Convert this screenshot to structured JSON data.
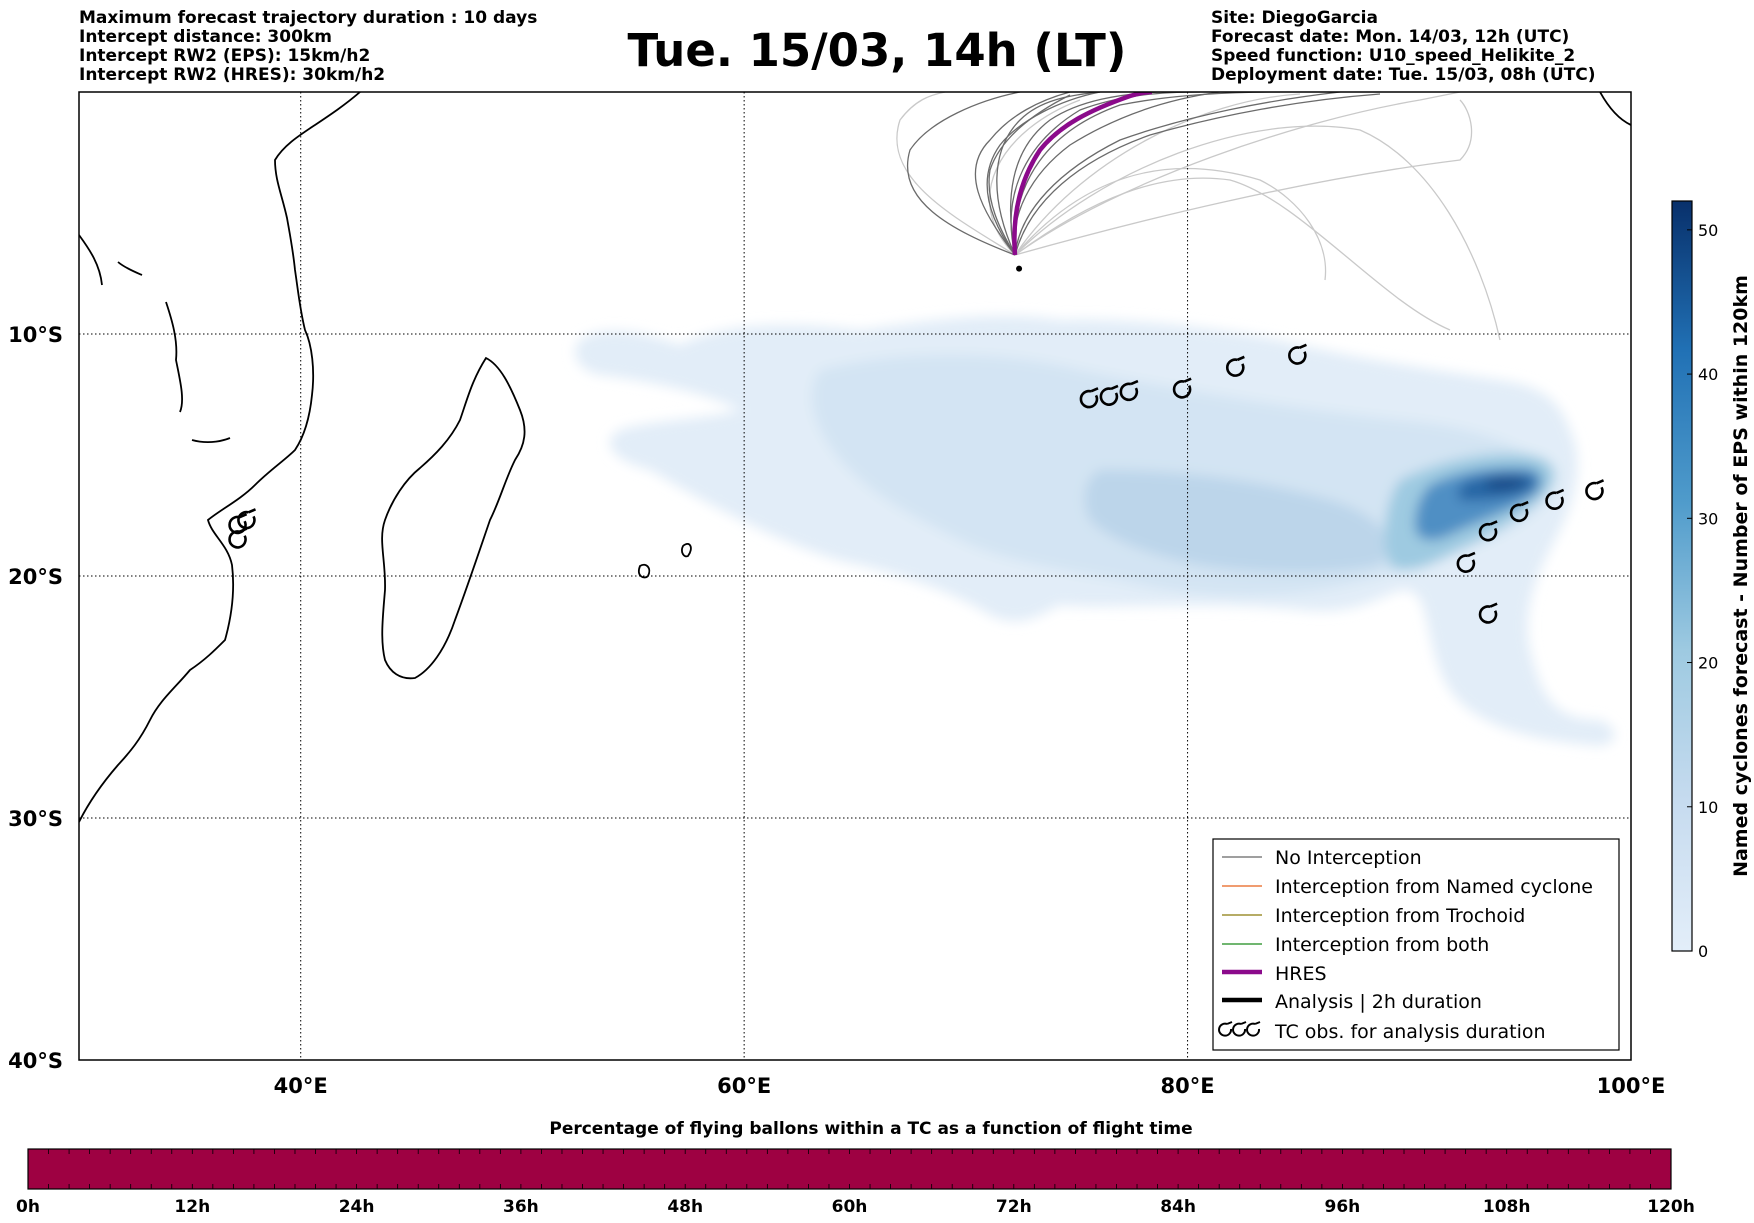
{
  "header": {
    "left_lines": [
      "Maximum forecast trajectory duration : 10 days",
      "Intercept distance: 300km",
      "Intercept RW2 (EPS):  15km/h2",
      "Intercept RW2 (HRES): 30km/h2"
    ],
    "title": "Tue. 15/03, 14h (LT)",
    "right_lines": [
      "Site: DiegoGarcia",
      "Forecast date: Mon. 14/03, 12h (UTC)",
      "Speed function: U10_speed_Helikite_2",
      "Deployment date: Tue. 15/03, 08h (UTC)"
    ]
  },
  "map": {
    "lon_range": [
      30,
      100
    ],
    "lat_range": [
      -40,
      0
    ],
    "lon_ticks": [
      {
        "value": 40,
        "label": "40°E"
      },
      {
        "value": 60,
        "label": "60°E"
      },
      {
        "value": 80,
        "label": "80°E"
      },
      {
        "value": 100,
        "label": "100°E"
      }
    ],
    "lat_ticks": [
      {
        "value": -10,
        "label": "10°S"
      },
      {
        "value": -20,
        "label": "20°S"
      },
      {
        "value": -30,
        "label": "30°S"
      },
      {
        "value": -40,
        "label": "40°S"
      }
    ],
    "gridlines": true,
    "deployment_site": {
      "lon": 72.4,
      "lat": -7.3
    },
    "tc_obs": [
      {
        "lon": 37.2,
        "lat": -17.9
      },
      {
        "lon": 37.6,
        "lat": -17.7
      },
      {
        "lon": 37.2,
        "lat": -18.5
      },
      {
        "lon": 75.6,
        "lat": -12.7
      },
      {
        "lon": 76.5,
        "lat": -12.6
      },
      {
        "lon": 77.4,
        "lat": -12.4
      },
      {
        "lon": 79.8,
        "lat": -12.3
      },
      {
        "lon": 82.2,
        "lat": -11.4
      },
      {
        "lon": 85.0,
        "lat": -10.9
      },
      {
        "lon": 98.4,
        "lat": -16.5
      },
      {
        "lon": 96.6,
        "lat": -16.9
      },
      {
        "lon": 95.0,
        "lat": -17.4
      },
      {
        "lon": 93.6,
        "lat": -18.2
      },
      {
        "lon": 92.6,
        "lat": -19.5
      },
      {
        "lon": 93.6,
        "lat": -21.6
      }
    ],
    "colors": {
      "no_interception": "#666666",
      "named_cyclone": "#e8611a",
      "trochoid": "#8a7a0a",
      "both": "#1a8a1a",
      "hres": "#8b0a8b",
      "analysis": "#000000"
    }
  },
  "legend": {
    "items": [
      {
        "label": "No Interception",
        "icon": "thin-grey-line"
      },
      {
        "label": "Interception from Named cyclone",
        "icon": "thin-orange-line"
      },
      {
        "label": "Interception from Trochoid",
        "icon": "thin-olive-line"
      },
      {
        "label": "Interception from both",
        "icon": "thin-green-line"
      },
      {
        "label": "HRES",
        "icon": "thick-purple-line"
      },
      {
        "label": "Analysis | 2h duration",
        "icon": "thick-black-line"
      },
      {
        "label": "TC obs. for analysis duration",
        "icon": "cyclone-symbols"
      }
    ]
  },
  "colorbar": {
    "title": "Named cyclones forecast - Number of EPS within 120km",
    "ticks": [
      0,
      10,
      20,
      30,
      40,
      50
    ],
    "range": [
      0,
      52
    ],
    "color_low": "#e3eef9",
    "color_high": "#08306b"
  },
  "bottom_bar": {
    "title": "Percentage of flying ballons within a TC as a function of flight time",
    "ticks": [
      "0h",
      "12h",
      "24h",
      "36h",
      "48h",
      "60h",
      "72h",
      "84h",
      "96h",
      "108h",
      "120h"
    ],
    "fill_color": "#9e0142"
  }
}
